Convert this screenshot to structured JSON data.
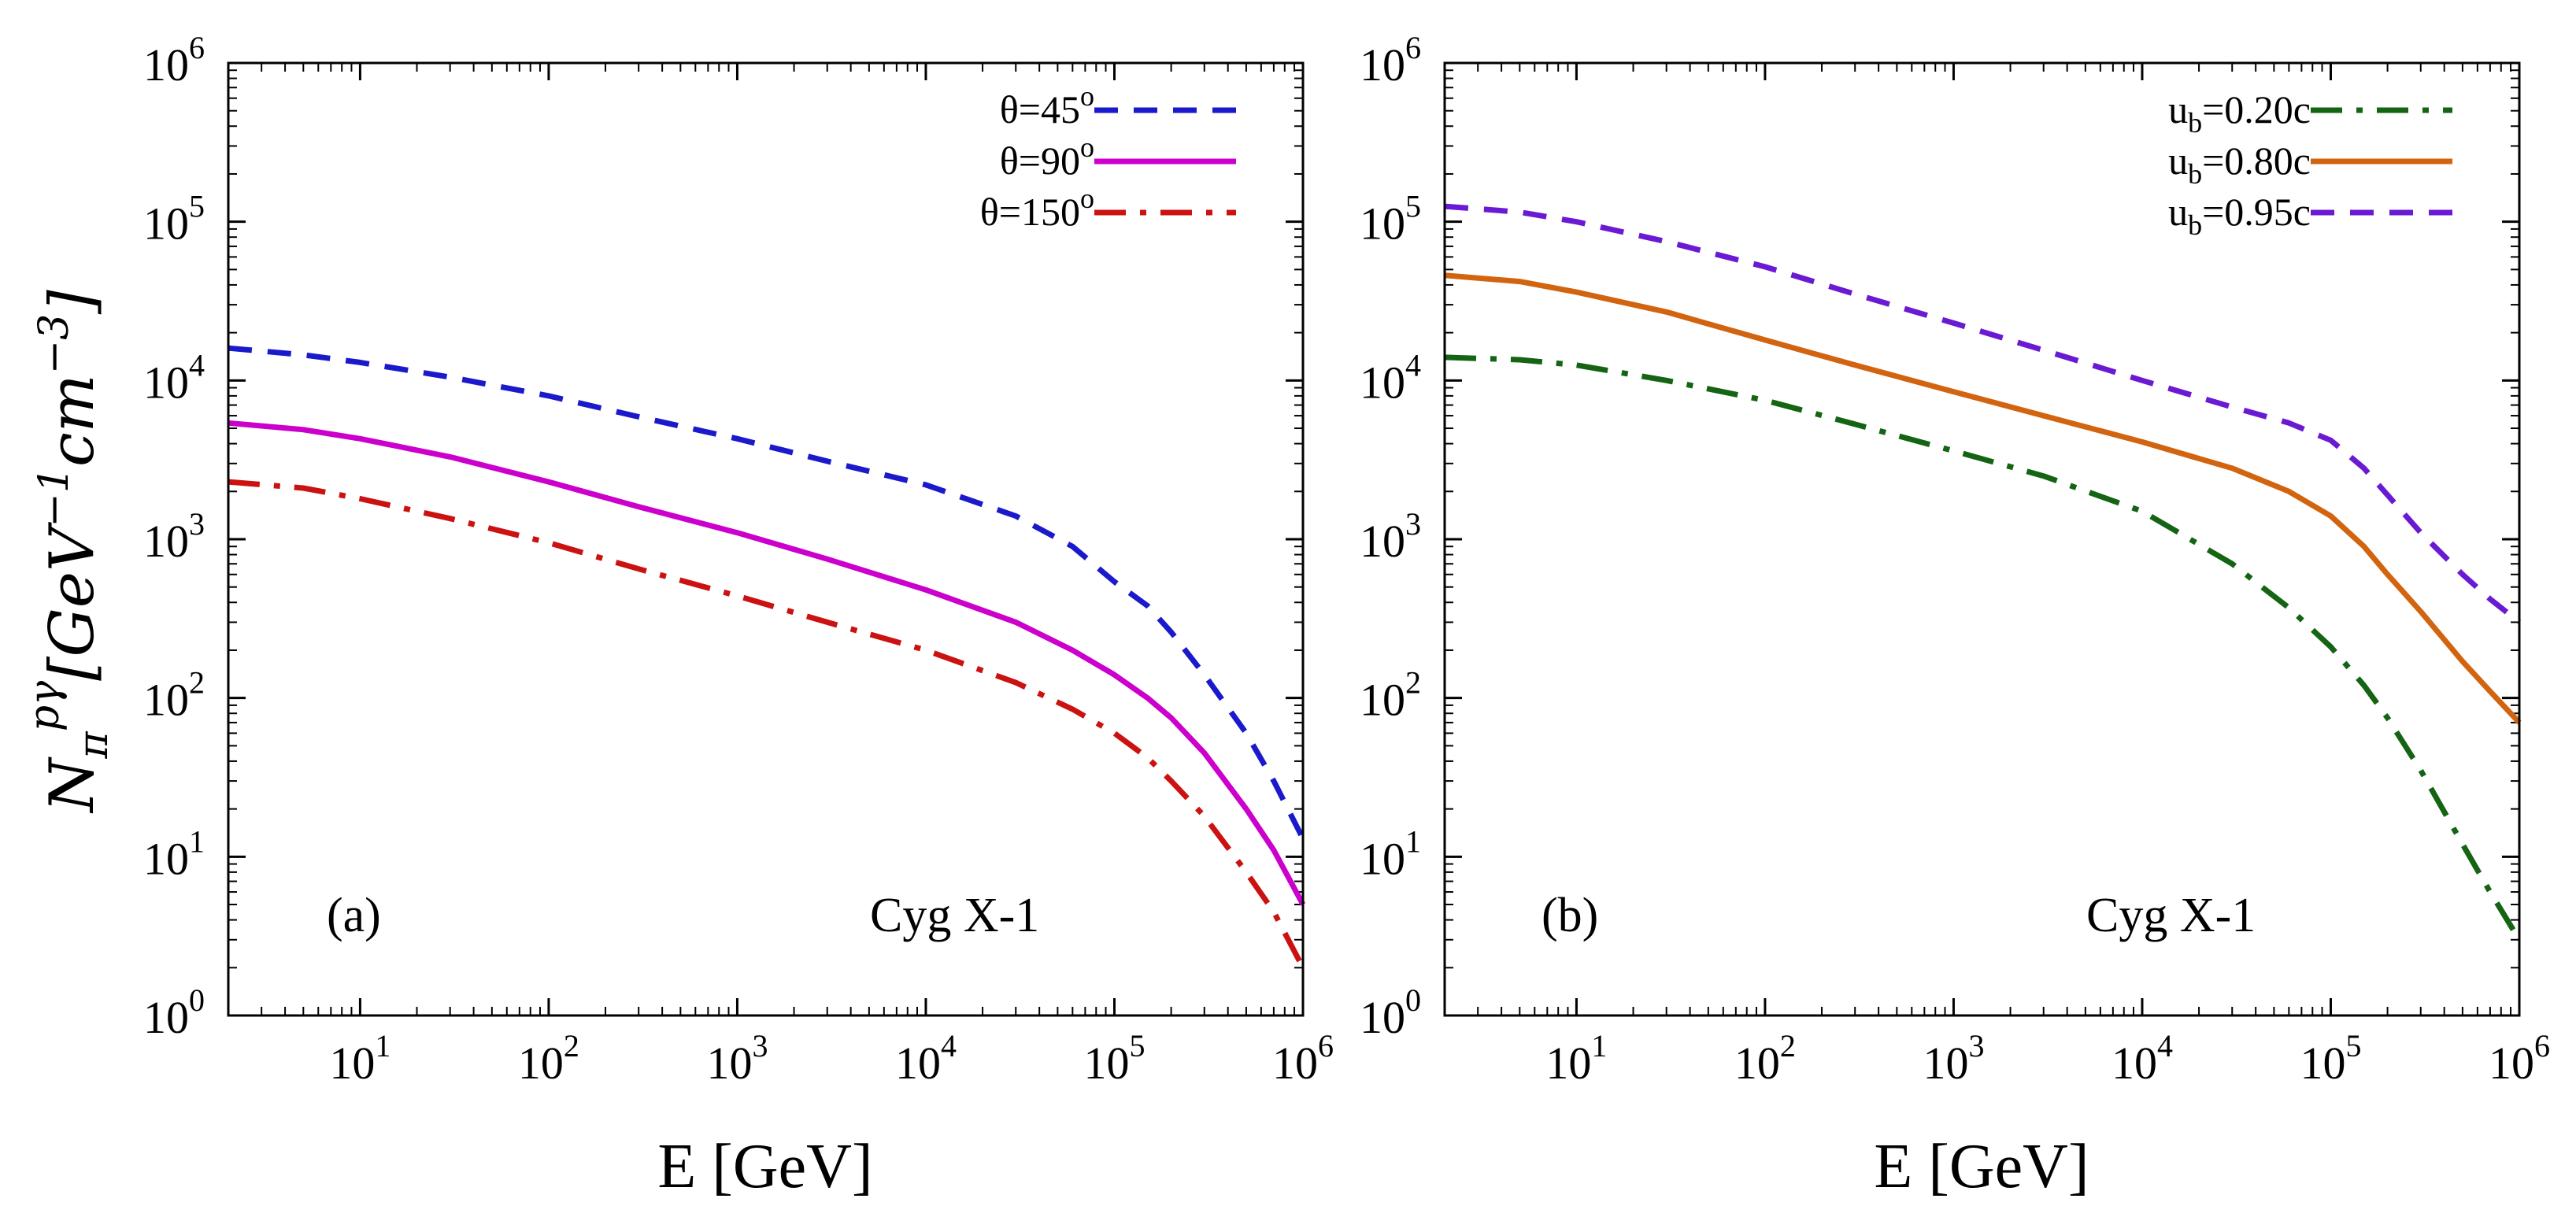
{
  "figure": {
    "y_label": {
      "base": "N",
      "sub": "π",
      "sup": "pγ",
      "unit_open": "[GeV",
      "unit_sup1": "−1",
      "unit_mid": "cm",
      "unit_sup2": "−3",
      "unit_close": "]"
    }
  },
  "chart_data": [
    {
      "type": "line",
      "panel": "(a)",
      "annotation": "Cyg X-1",
      "xlabel": "E [GeV]",
      "xscale": "log",
      "yscale": "log",
      "xlim": [
        2,
        1000000
      ],
      "ylim": [
        1,
        1000000
      ],
      "x_ticks": [
        {
          "base": "10",
          "exp": "1",
          "value": 10
        },
        {
          "base": "10",
          "exp": "2",
          "value": 100
        },
        {
          "base": "10",
          "exp": "3",
          "value": 1000
        },
        {
          "base": "10",
          "exp": "4",
          "value": 10000
        },
        {
          "base": "10",
          "exp": "5",
          "value": 100000
        },
        {
          "base": "10",
          "exp": "6",
          "value": 1000000
        }
      ],
      "y_ticks": [
        {
          "base": "10",
          "exp": "0",
          "value": 1
        },
        {
          "base": "10",
          "exp": "1",
          "value": 10
        },
        {
          "base": "10",
          "exp": "2",
          "value": 100
        },
        {
          "base": "10",
          "exp": "3",
          "value": 1000
        },
        {
          "base": "10",
          "exp": "4",
          "value": 10000
        },
        {
          "base": "10",
          "exp": "5",
          "value": 100000
        },
        {
          "base": "10",
          "exp": "6",
          "value": 1000000
        }
      ],
      "legend_position": "top-right",
      "series": [
        {
          "name": "θ=45",
          "sup": "o",
          "color": "#1a1acc",
          "style": "dashed",
          "x": [
            2,
            5,
            10,
            30,
            100,
            300,
            1000,
            3000,
            10000,
            30000,
            60000,
            100000,
            150000,
            200000,
            300000,
            500000,
            700000,
            1000000
          ],
          "y": [
            16000,
            14500,
            13000,
            10500,
            8000,
            5900,
            4300,
            3100,
            2200,
            1400,
            900,
            540,
            380,
            260,
            140,
            60,
            30,
            13
          ]
        },
        {
          "name": "θ=90",
          "sup": "o",
          "color": "#cc00cc",
          "style": "solid",
          "x": [
            2,
            5,
            10,
            30,
            100,
            300,
            1000,
            3000,
            10000,
            30000,
            60000,
            100000,
            150000,
            200000,
            300000,
            500000,
            700000,
            1000000
          ],
          "y": [
            5400,
            4900,
            4300,
            3300,
            2300,
            1600,
            1100,
            750,
            480,
            300,
            200,
            140,
            100,
            75,
            45,
            20,
            11,
            5
          ]
        },
        {
          "name": "θ=150",
          "sup": "o",
          "color": "#cc1111",
          "style": "dashdot",
          "x": [
            2,
            5,
            10,
            30,
            100,
            300,
            1000,
            3000,
            10000,
            30000,
            60000,
            100000,
            150000,
            200000,
            300000,
            500000,
            700000,
            1000000
          ],
          "y": [
            2300,
            2100,
            1800,
            1350,
            950,
            650,
            440,
            300,
            200,
            125,
            85,
            60,
            42,
            30,
            18,
            8,
            4.5,
            2
          ]
        }
      ]
    },
    {
      "type": "line",
      "panel": "(b)",
      "annotation": "Cyg X-1",
      "xlabel": "E [GeV]",
      "xscale": "log",
      "yscale": "log",
      "xlim": [
        2,
        1000000
      ],
      "ylim": [
        1,
        1000000
      ],
      "x_ticks": [
        {
          "base": "10",
          "exp": "1",
          "value": 10
        },
        {
          "base": "10",
          "exp": "2",
          "value": 100
        },
        {
          "base": "10",
          "exp": "3",
          "value": 1000
        },
        {
          "base": "10",
          "exp": "4",
          "value": 10000
        },
        {
          "base": "10",
          "exp": "5",
          "value": 100000
        },
        {
          "base": "10",
          "exp": "6",
          "value": 1000000
        }
      ],
      "y_ticks": [
        {
          "base": "10",
          "exp": "0",
          "value": 1
        },
        {
          "base": "10",
          "exp": "1",
          "value": 10
        },
        {
          "base": "10",
          "exp": "2",
          "value": 100
        },
        {
          "base": "10",
          "exp": "3",
          "value": 1000
        },
        {
          "base": "10",
          "exp": "4",
          "value": 10000
        },
        {
          "base": "10",
          "exp": "5",
          "value": 100000
        },
        {
          "base": "10",
          "exp": "6",
          "value": 1000000
        }
      ],
      "legend_position": "top-right",
      "series": [
        {
          "name": "u",
          "sub": "b",
          "suffix": "=0.20c",
          "color": "#146414",
          "style": "dashdot",
          "x": [
            2,
            5,
            10,
            30,
            100,
            300,
            1000,
            3000,
            10000,
            30000,
            60000,
            100000,
            150000,
            200000,
            300000,
            500000,
            700000,
            1000000
          ],
          "y": [
            14000,
            13500,
            12500,
            10000,
            7500,
            5300,
            3600,
            2500,
            1500,
            700,
            370,
            210,
            120,
            75,
            35,
            12,
            6,
            3
          ]
        },
        {
          "name": "u",
          "sub": "b",
          "suffix": "=0.80c",
          "color": "#d2640f",
          "style": "solid",
          "x": [
            2,
            5,
            10,
            30,
            100,
            300,
            1000,
            3000,
            10000,
            30000,
            60000,
            100000,
            150000,
            200000,
            300000,
            500000,
            700000,
            1000000
          ],
          "y": [
            46000,
            42000,
            36000,
            27000,
            18000,
            12500,
            8500,
            6000,
            4100,
            2800,
            2000,
            1400,
            900,
            600,
            350,
            170,
            110,
            70
          ]
        },
        {
          "name": "u",
          "sub": "b",
          "suffix": "=0.95c",
          "color": "#6a1ad2",
          "style": "dashed",
          "x": [
            2,
            5,
            10,
            30,
            100,
            300,
            1000,
            3000,
            10000,
            30000,
            60000,
            100000,
            150000,
            200000,
            300000,
            500000,
            700000,
            1000000
          ],
          "y": [
            125000,
            115000,
            100000,
            75000,
            52000,
            35000,
            23000,
            15500,
            10000,
            6800,
            5400,
            4200,
            2800,
            1900,
            1100,
            600,
            420,
            300
          ]
        }
      ]
    }
  ]
}
